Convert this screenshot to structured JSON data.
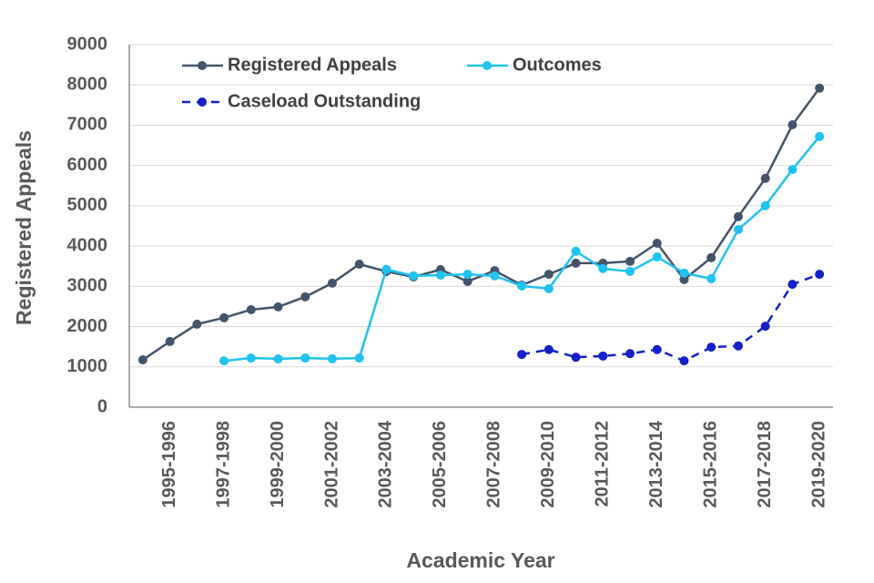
{
  "chart_data": {
    "type": "line",
    "x_label": "Academic Year",
    "y_label": "Registered Appeals",
    "categories": [
      null,
      "1995-1996",
      null,
      "1997-1998",
      null,
      "1999-2000",
      null,
      "2001-2002",
      null,
      "2003-2004",
      null,
      "2005-2006",
      null,
      "2007-2008",
      null,
      "2009-2010",
      null,
      "2011-2012",
      null,
      "2013-2014",
      null,
      "2015-2016",
      null,
      "2017-2018",
      null,
      "2019-2020"
    ],
    "series": [
      {
        "name": "Registered Appeals",
        "color": "#44546a",
        "dashed": false,
        "values": [
          1175,
          1630,
          2060,
          2220,
          2420,
          2490,
          2740,
          3080,
          3550,
          3370,
          3235,
          3415,
          3120,
          3390,
          3030,
          3300,
          3575,
          3575,
          3620,
          4070,
          3170,
          3710,
          4730,
          5680,
          7010,
          7920
        ]
      },
      {
        "name": "Outcomes",
        "color": "#1fc3ef",
        "dashed": false,
        "values": [
          null,
          null,
          null,
          1150,
          1220,
          1200,
          1220,
          1200,
          1220,
          3420,
          3260,
          3280,
          3300,
          3260,
          3010,
          2940,
          3870,
          3440,
          3370,
          3730,
          3330,
          3190,
          4410,
          5000,
          5900,
          6720
        ]
      },
      {
        "name": "Caseload Outstanding",
        "color": "#1420c8",
        "dashed": true,
        "values": [
          null,
          null,
          null,
          null,
          null,
          null,
          null,
          null,
          null,
          null,
          null,
          null,
          null,
          null,
          1310,
          1430,
          1240,
          1270,
          1330,
          1430,
          1150,
          1490,
          1520,
          2010,
          3050,
          3300
        ]
      }
    ],
    "ylim": [
      0,
      9000
    ],
    "yticks": [
      0,
      1000,
      2000,
      3000,
      4000,
      5000,
      6000,
      7000,
      8000,
      9000
    ],
    "grid": true
  }
}
